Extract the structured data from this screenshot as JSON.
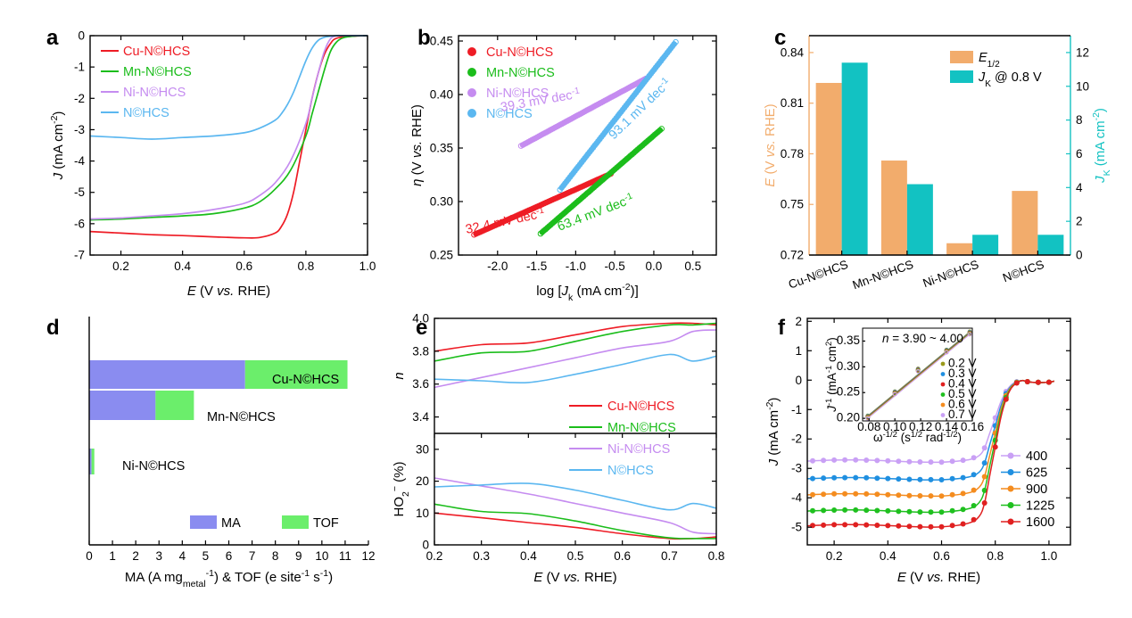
{
  "figure": {
    "panels": [
      "a",
      "b",
      "c",
      "d",
      "e",
      "f"
    ]
  },
  "colors": {
    "cu": "#ee1c25",
    "mn": "#1bbd1b",
    "ni": "#c58cf0",
    "n": "#5bb7f0",
    "orange": "#f2ac6c",
    "teal": "#12c2c2",
    "blue": "#8a8cf0",
    "green": "#6bee6b"
  },
  "chart_data": [
    {
      "id": "a",
      "type": "line",
      "xlabel": "E (V vs. RHE)",
      "ylabel": "J (mA cm-2)",
      "xlim": [
        0.1,
        1.0
      ],
      "ylim": [
        -7,
        0
      ],
      "xticks": [
        0.2,
        0.4,
        0.6,
        0.8,
        1.0
      ],
      "xtick_labels": [
        "0.2",
        "0.4",
        "0.6",
        "0.8",
        "1.0"
      ],
      "yticks": [
        -7,
        -6,
        -5,
        -4,
        -3,
        -2,
        -1,
        0
      ],
      "ytick_labels": [
        "-7",
        "-6",
        "-5",
        "-4",
        "-3",
        "-2",
        "-1",
        "0"
      ],
      "legend": "top-left",
      "series": [
        {
          "name": "Cu-N©HCS",
          "color": "#ee1c25",
          "x": [
            0.1,
            0.2,
            0.3,
            0.4,
            0.5,
            0.6,
            0.65,
            0.7,
            0.72,
            0.74,
            0.76,
            0.78,
            0.8,
            0.82,
            0.84,
            0.86,
            0.88,
            0.9,
            0.95,
            1.0
          ],
          "y": [
            -6.25,
            -6.3,
            -6.35,
            -6.38,
            -6.42,
            -6.45,
            -6.44,
            -6.3,
            -6.1,
            -5.7,
            -5.0,
            -4.0,
            -3.0,
            -2.0,
            -1.2,
            -0.6,
            -0.25,
            -0.08,
            -0.02,
            0
          ]
        },
        {
          "name": "Mn-N©HCS",
          "color": "#1bbd1b",
          "x": [
            0.1,
            0.2,
            0.3,
            0.4,
            0.5,
            0.6,
            0.65,
            0.7,
            0.75,
            0.8,
            0.82,
            0.84,
            0.86,
            0.88,
            0.9,
            0.92,
            0.95,
            1.0
          ],
          "y": [
            -5.88,
            -5.85,
            -5.8,
            -5.75,
            -5.68,
            -5.5,
            -5.3,
            -4.9,
            -4.3,
            -3.2,
            -2.5,
            -1.8,
            -1.1,
            -0.5,
            -0.2,
            -0.07,
            -0.02,
            0
          ]
        },
        {
          "name": "Ni-N©HCS",
          "color": "#c58cf0",
          "x": [
            0.1,
            0.2,
            0.3,
            0.4,
            0.5,
            0.6,
            0.65,
            0.7,
            0.75,
            0.8,
            0.82,
            0.84,
            0.86,
            0.88,
            0.9,
            0.92,
            0.95,
            1.0
          ],
          "y": [
            -5.85,
            -5.82,
            -5.75,
            -5.68,
            -5.55,
            -5.35,
            -5.1,
            -4.7,
            -4.0,
            -2.8,
            -2.0,
            -1.2,
            -0.5,
            -0.1,
            0,
            0,
            0,
            0
          ]
        },
        {
          "name": "N©HCS",
          "color": "#5bb7f0",
          "x": [
            0.1,
            0.2,
            0.3,
            0.4,
            0.5,
            0.6,
            0.65,
            0.7,
            0.72,
            0.74,
            0.76,
            0.78,
            0.8,
            0.82,
            0.84,
            0.86,
            0.88,
            0.9,
            0.95,
            1.0
          ],
          "y": [
            -3.2,
            -3.25,
            -3.3,
            -3.25,
            -3.2,
            -3.1,
            -2.95,
            -2.7,
            -2.5,
            -2.2,
            -1.8,
            -1.3,
            -0.8,
            -0.4,
            -0.15,
            -0.05,
            -0.02,
            0,
            0,
            0
          ]
        }
      ]
    },
    {
      "id": "b",
      "type": "scatter",
      "xlabel": "log [Jk (mA cm-2)]",
      "ylabel": "η (V vs. RHE)",
      "xlim": [
        -2.5,
        0.8
      ],
      "ylim": [
        0.25,
        0.455
      ],
      "xticks": [
        -2.0,
        -1.5,
        -1.0,
        -0.5,
        0.0,
        0.5
      ],
      "xtick_labels": [
        "-2.0",
        "-1.5",
        "-1.0",
        "-0.5",
        "0.0",
        "0.5"
      ],
      "yticks": [
        0.25,
        0.3,
        0.35,
        0.4,
        0.45
      ],
      "ytick_labels": [
        "0.25",
        "0.30",
        "0.35",
        "0.40",
        "0.45"
      ],
      "legend": "top-left",
      "series": [
        {
          "name": "Cu-N©HCS",
          "color": "#ee1c25",
          "x0": -2.3,
          "x1": -0.55,
          "y0": 0.269,
          "y1": 0.326
        },
        {
          "name": "Mn-N©HCS",
          "color": "#1bbd1b",
          "x0": -1.45,
          "x1": 0.1,
          "y0": 0.27,
          "y1": 0.368
        },
        {
          "name": "Ni-N©HCS",
          "color": "#c58cf0",
          "x0": -1.7,
          "x1": -0.1,
          "y0": 0.352,
          "y1": 0.415
        },
        {
          "name": "N©HCS",
          "color": "#5bb7f0",
          "x0": -1.2,
          "x1": 0.28,
          "y0": 0.311,
          "y1": 0.449
        }
      ],
      "annotations": [
        {
          "text": "32.4 mV dec-1",
          "color": "#ee1c25"
        },
        {
          "text": "63.4 mV dec-1",
          "color": "#1bbd1b"
        },
        {
          "text": "39.3 mV dec-1",
          "color": "#c58cf0"
        },
        {
          "text": "93.1 mV dec-1",
          "color": "#5bb7f0"
        }
      ]
    },
    {
      "id": "c",
      "type": "bar",
      "categories": [
        "Cu-N©HCS",
        "Mn-N©HCS",
        "Ni-N©HCS",
        "N©HCS"
      ],
      "ylabel": "E (V vs. RHE)",
      "y2label": "JK (mA cm-2)",
      "ylim": [
        0.72,
        0.85
      ],
      "y2lim": [
        0,
        13
      ],
      "yticks": [
        0.72,
        0.75,
        0.78,
        0.81,
        0.84
      ],
      "ytick_labels": [
        "0.72",
        "0.75",
        "0.78",
        "0.81",
        "0.84"
      ],
      "y2ticks": [
        0,
        2,
        4,
        6,
        8,
        10,
        12
      ],
      "y2tick_labels": [
        "0",
        "2",
        "4",
        "6",
        "8",
        "10",
        "12"
      ],
      "legend": "top-right",
      "series": [
        {
          "name": "E1/2",
          "color": "#f2ac6c",
          "axis": "left",
          "values": [
            0.822,
            0.776,
            0.727,
            0.758
          ]
        },
        {
          "name": "JK @ 0.8 V",
          "color": "#12c2c2",
          "axis": "right",
          "values": [
            11.4,
            4.2,
            1.2,
            1.2
          ]
        }
      ]
    },
    {
      "id": "d",
      "type": "bar",
      "orientation": "horizontal",
      "stacked": true,
      "categories": [
        "Cu-N©HCS",
        "Mn-N©HCS",
        "Ni-N©HCS"
      ],
      "xlabel": "MA (A mgmetal-1) & TOF (e site-1 s-1)",
      "xlim": [
        0,
        12
      ],
      "xticks": [
        0,
        1,
        2,
        3,
        4,
        5,
        6,
        7,
        8,
        9,
        10,
        11,
        12
      ],
      "xtick_labels": [
        "0",
        "1",
        "2",
        "3",
        "4",
        "5",
        "6",
        "7",
        "8",
        "9",
        "10",
        "11",
        "12"
      ],
      "legend": "bottom",
      "series": [
        {
          "name": "MA",
          "color": "#8a8cf0",
          "values": [
            6.7,
            2.85,
            0.1
          ]
        },
        {
          "name": "TOF",
          "color": "#6bee6b",
          "values": [
            4.4,
            1.65,
            0.12
          ]
        }
      ]
    },
    {
      "id": "e",
      "type": "line",
      "xlabel": "E (V vs. RHE)",
      "xlim": [
        0.2,
        0.8
      ],
      "xticks": [
        0.2,
        0.3,
        0.4,
        0.5,
        0.6,
        0.7,
        0.8
      ],
      "xtick_labels": [
        "0.2",
        "0.3",
        "0.4",
        "0.5",
        "0.6",
        "0.7",
        "0.8"
      ],
      "top": {
        "ylabel": "n",
        "ylim": [
          3.3,
          4.0
        ],
        "yticks": [
          3.4,
          3.6,
          3.8,
          4.0
        ],
        "ytick_labels": [
          "3.4",
          "3.6",
          "3.8",
          "4.0"
        ]
      },
      "bottom": {
        "ylabel": "HO2- (%)",
        "ylim": [
          0,
          35
        ],
        "yticks": [
          0,
          10,
          20,
          30
        ],
        "ytick_labels": [
          "0",
          "10",
          "20",
          "30"
        ]
      },
      "series": [
        {
          "name": "Cu-N©HCS",
          "color": "#ee1c25",
          "x": [
            0.2,
            0.3,
            0.4,
            0.5,
            0.6,
            0.7,
            0.75,
            0.8
          ],
          "n": [
            3.8,
            3.84,
            3.85,
            3.9,
            3.95,
            3.97,
            3.97,
            3.96
          ],
          "ho2": [
            10,
            8.5,
            7,
            5.5,
            3.5,
            2,
            2,
            2.5
          ]
        },
        {
          "name": "Mn-N©HCS",
          "color": "#1bbd1b",
          "x": [
            0.2,
            0.3,
            0.4,
            0.5,
            0.6,
            0.7,
            0.75,
            0.8
          ],
          "n": [
            3.74,
            3.79,
            3.8,
            3.86,
            3.92,
            3.96,
            3.96,
            3.97
          ],
          "ho2": [
            12.8,
            10.5,
            9.8,
            7.5,
            4.5,
            2.2,
            2,
            2
          ]
        },
        {
          "name": "Ni-N©HCS",
          "color": "#c58cf0",
          "x": [
            0.2,
            0.3,
            0.4,
            0.5,
            0.6,
            0.7,
            0.75,
            0.8
          ],
          "n": [
            3.58,
            3.64,
            3.7,
            3.76,
            3.82,
            3.86,
            3.92,
            3.93
          ],
          "ho2": [
            21,
            18.5,
            16,
            13,
            10,
            7,
            4,
            3.5
          ]
        },
        {
          "name": "N©HCS",
          "color": "#5bb7f0",
          "x": [
            0.2,
            0.3,
            0.4,
            0.5,
            0.6,
            0.7,
            0.75,
            0.8
          ],
          "n": [
            3.63,
            3.62,
            3.61,
            3.66,
            3.72,
            3.78,
            3.74,
            3.77
          ],
          "ho2": [
            18.2,
            18.8,
            19.3,
            17.2,
            14,
            11,
            13,
            11.5
          ]
        }
      ]
    },
    {
      "id": "f",
      "type": "line",
      "xlabel": "E (V vs. RHE)",
      "ylabel": "J (mA cm-2)",
      "xlim": [
        0.1,
        1.08
      ],
      "ylim": [
        -5.6,
        2.1
      ],
      "xticks": [
        0.2,
        0.4,
        0.6,
        0.8,
        1.0
      ],
      "xtick_labels": [
        "0.2",
        "0.4",
        "0.6",
        "0.8",
        "1.0"
      ],
      "yticks": [
        -5,
        -4,
        -3,
        -2,
        -1,
        0,
        1,
        2
      ],
      "ytick_labels": [
        "-5",
        "-4",
        "-3",
        "-2",
        "-1",
        "0",
        "1",
        "2"
      ],
      "legend": "bottom-right",
      "series": [
        {
          "name": "400",
          "color": "#c9a0f5",
          "plateau": -2.75
        },
        {
          "name": "625",
          "color": "#1f8fe0",
          "plateau": -3.35
        },
        {
          "name": "900",
          "color": "#f48c1f",
          "plateau": -3.9
        },
        {
          "name": "1225",
          "color": "#1fc01f",
          "plateau": -4.45
        },
        {
          "name": "1600",
          "color": "#e02020",
          "plateau": -4.95
        }
      ],
      "inset": {
        "type": "scatter",
        "xlabel": "ω-1/2 (s1/2 rad-1/2)",
        "ylabel": "J-1 (mA-1 cm2)",
        "annotation": "n = 3.90 ~ 4.00",
        "xlim": [
          0.075,
          0.16
        ],
        "ylim": [
          0.195,
          0.375
        ],
        "xticks": [
          0.08,
          0.1,
          0.12,
          0.14,
          0.16
        ],
        "xtick_labels": [
          "0.08",
          "0.10",
          "0.12",
          "0.14",
          "0.16"
        ],
        "yticks": [
          0.2,
          0.25,
          0.3,
          0.35
        ],
        "ytick_labels": [
          "0.20",
          "0.25",
          "0.30",
          "0.35"
        ],
        "x": [
          0.079,
          0.1,
          0.118,
          0.14,
          0.158
        ],
        "series": [
          {
            "name": "0.2 V",
            "color": "#9a9a1a",
            "y": [
              0.205,
              0.252,
              0.296,
              0.333,
              0.368
            ]
          },
          {
            "name": "0.3 V",
            "color": "#1f8fe0",
            "y": [
              0.204,
              0.251,
              0.295,
              0.332,
              0.367
            ]
          },
          {
            "name": "0.4 V",
            "color": "#e02020",
            "y": [
              0.203,
              0.25,
              0.294,
              0.331,
              0.366
            ]
          },
          {
            "name": "0.5 V",
            "color": "#1fc01f",
            "y": [
              0.202,
              0.249,
              0.293,
              0.33,
              0.365
            ]
          },
          {
            "name": "0.6 V",
            "color": "#f48c1f",
            "y": [
              0.201,
              0.248,
              0.292,
              0.329,
              0.364
            ]
          },
          {
            "name": "0.7 V",
            "color": "#c9a0f5",
            "y": [
              0.2,
              0.247,
              0.291,
              0.328,
              0.363
            ]
          }
        ]
      }
    }
  ]
}
